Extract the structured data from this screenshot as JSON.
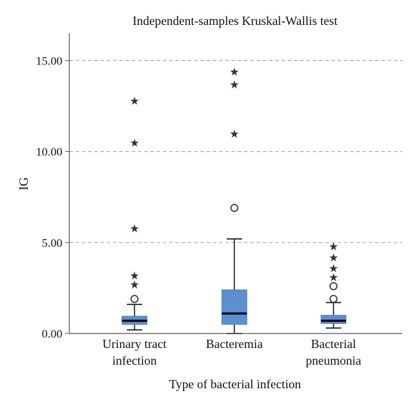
{
  "chart_data": {
    "type": "boxplot",
    "title": "Independent-samples Kruskal-Wallis test",
    "xlabel": "Type of bacterial infection",
    "ylabel": "IG",
    "ylim": [
      0,
      16.5
    ],
    "yticks": [
      "0.00",
      "5.00",
      "10.00",
      "15.00"
    ],
    "ytick_values": [
      0,
      5,
      10,
      15
    ],
    "grid": "horizontal dashed",
    "box_color": "#5b8fd0",
    "outlier_color": "#333333",
    "categories": [
      {
        "label_lines": [
          "Urinary tract",
          "infection"
        ],
        "whisker_low": 0.2,
        "q1": 0.5,
        "median": 0.7,
        "q3": 0.95,
        "whisker_high": 1.6,
        "outliers_circle": [
          1.9
        ],
        "outliers_extreme": [
          2.7,
          3.2,
          5.8,
          10.5,
          12.8
        ]
      },
      {
        "label_lines": [
          "Bacteremia"
        ],
        "whisker_low": 0.0,
        "q1": 0.5,
        "median": 1.1,
        "q3": 2.4,
        "whisker_high": 5.2,
        "outliers_circle": [
          6.9
        ],
        "outliers_extreme": [
          11.0,
          13.7,
          14.4
        ]
      },
      {
        "label_lines": [
          "Bacterial",
          "pneumonia"
        ],
        "whisker_low": 0.3,
        "q1": 0.55,
        "median": 0.7,
        "q3": 1.0,
        "whisker_high": 1.7,
        "outliers_circle": [
          1.9,
          2.6
        ],
        "outliers_extreme": [
          3.1,
          3.6,
          4.2,
          4.8
        ]
      }
    ]
  }
}
